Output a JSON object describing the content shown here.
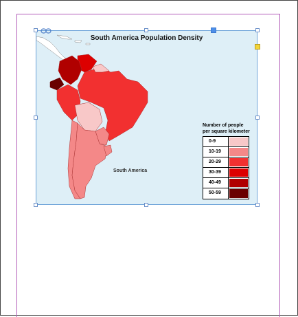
{
  "map": {
    "title": "South America Population Density",
    "region_label": "South America",
    "legend": {
      "title_line1": "Number of people",
      "title_line2": "per square kilometer",
      "items": [
        {
          "label": "0-9",
          "color": "#f8c8c8"
        },
        {
          "label": "10-19",
          "color": "#f48888"
        },
        {
          "label": "20-29",
          "color": "#f23030"
        },
        {
          "label": "30-39",
          "color": "#dd0000"
        },
        {
          "label": "40-49",
          "color": "#b00000"
        },
        {
          "label": "50-59",
          "color": "#6a0000"
        }
      ]
    }
  },
  "icons": {
    "link": "link-icon",
    "selected_handle": "selected-handle",
    "anchor_handle": "yellow-anchor-handle"
  }
}
